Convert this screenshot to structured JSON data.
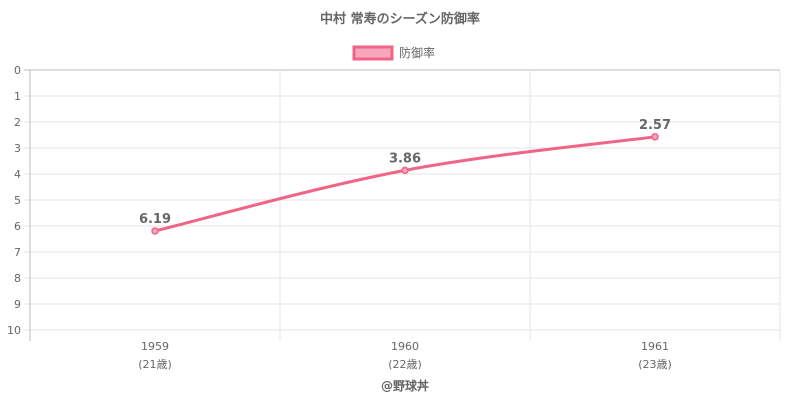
{
  "chart_data": {
    "type": "line",
    "title": "中村 常寿のシーズン防御率",
    "legend": {
      "label": "防御率",
      "position": "top"
    },
    "categories": [
      "1959",
      "1960",
      "1961"
    ],
    "category_sublabels": [
      "(21歳)",
      "(22歳)",
      "(23歳)"
    ],
    "series": [
      {
        "name": "防御率",
        "values": [
          6.19,
          3.86,
          2.57
        ],
        "labels": [
          "6.19",
          "3.86",
          "2.57"
        ]
      }
    ],
    "y_axis": {
      "min": 0,
      "max": 10,
      "step": 1,
      "reversed": true,
      "ticks": [
        "0",
        "1",
        "2",
        "3",
        "4",
        "5",
        "6",
        "7",
        "8",
        "9",
        "10"
      ]
    },
    "grid": true,
    "colors": {
      "line": "#f06487",
      "fill": "#f7a7bb",
      "grid": "#e6e6e6",
      "axis": "#bbbbbb",
      "text": "#666666"
    }
  },
  "footer": "@野球丼"
}
